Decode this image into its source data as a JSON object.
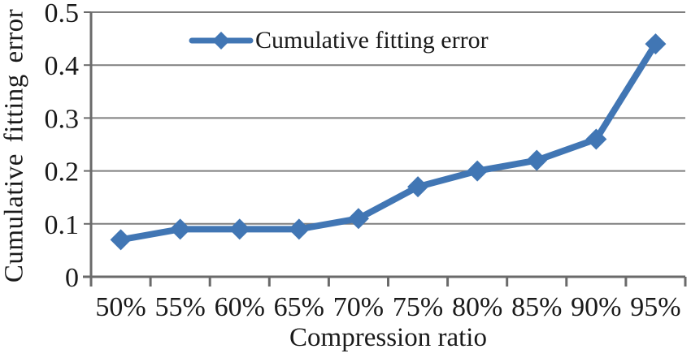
{
  "chart_data": {
    "type": "line",
    "title": "",
    "xlabel": "Compression ratio",
    "ylabel": "Cumulative  fitting error",
    "categories": [
      "50%",
      "55%",
      "60%",
      "65%",
      "70%",
      "75%",
      "80%",
      "85%",
      "90%",
      "95%"
    ],
    "series": [
      {
        "name": "Cumulative fitting error",
        "values": [
          0.07,
          0.09,
          0.09,
          0.09,
          0.11,
          0.17,
          0.2,
          0.22,
          0.26,
          0.44
        ],
        "marker": "diamond"
      }
    ],
    "ylim": [
      0,
      0.5
    ],
    "yticks": [
      0,
      0.1,
      0.2,
      0.3,
      0.4,
      0.5
    ],
    "ytick_labels": [
      "0",
      "0.1",
      "0.2",
      "0.3",
      "0.4",
      "0.5"
    ],
    "grid": "horizontal",
    "legend_position": "top-center",
    "colors": {
      "line": "#4176b4",
      "gridline": "#7f7f7f",
      "axis": "#6a6a6a",
      "text": "#1a1a1a"
    }
  }
}
